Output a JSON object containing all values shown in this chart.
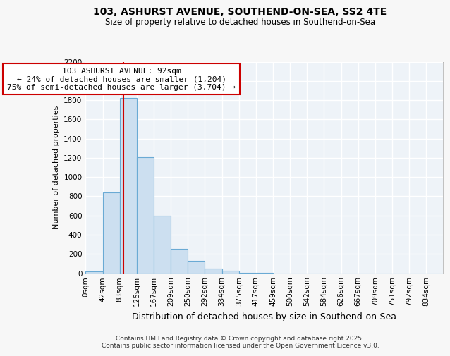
{
  "title1": "103, ASHURST AVENUE, SOUTHEND-ON-SEA, SS2 4TE",
  "title2": "Size of property relative to detached houses in Southend-on-Sea",
  "xlabel": "Distribution of detached houses by size in Southend-on-Sea",
  "ylabel": "Number of detached properties",
  "footnote1": "Contains HM Land Registry data © Crown copyright and database right 2025.",
  "footnote2": "Contains public sector information licensed under the Open Government Licence v3.0.",
  "annotation_line1": "103 ASHURST AVENUE: 92sqm",
  "annotation_line2": "← 24% of detached houses are smaller (1,204)",
  "annotation_line3": "75% of semi-detached houses are larger (3,704) →",
  "bar_color": "#ccdff0",
  "bar_edge_color": "#6aaad4",
  "marker_line_color": "#cc0000",
  "annotation_box_edge_color": "#cc0000",
  "plot_bg_color": "#eef3f8",
  "fig_bg_color": "#f7f7f7",
  "grid_color": "#ffffff",
  "bin_edges": [
    0,
    41.5,
    83,
    124.5,
    166,
    207.5,
    249,
    290.5,
    332,
    373.5,
    415,
    456.5,
    498,
    539.5,
    581,
    622.5,
    664,
    705.5,
    747,
    788.5,
    830,
    871.5
  ],
  "bin_labels": [
    "0sqm",
    "42sqm",
    "83sqm",
    "125sqm",
    "167sqm",
    "209sqm",
    "250sqm",
    "292sqm",
    "334sqm",
    "375sqm",
    "417sqm",
    "459sqm",
    "500sqm",
    "542sqm",
    "584sqm",
    "626sqm",
    "667sqm",
    "709sqm",
    "751sqm",
    "792sqm",
    "834sqm"
  ],
  "counts": [
    20,
    840,
    1820,
    1210,
    600,
    255,
    125,
    50,
    25,
    5,
    5,
    0,
    0,
    0,
    0,
    0,
    0,
    0,
    0,
    0,
    0
  ],
  "property_size_sqm": 92,
  "ylim": [
    0,
    2200
  ],
  "yticks": [
    0,
    200,
    400,
    600,
    800,
    1000,
    1200,
    1400,
    1600,
    1800,
    2000,
    2200
  ]
}
